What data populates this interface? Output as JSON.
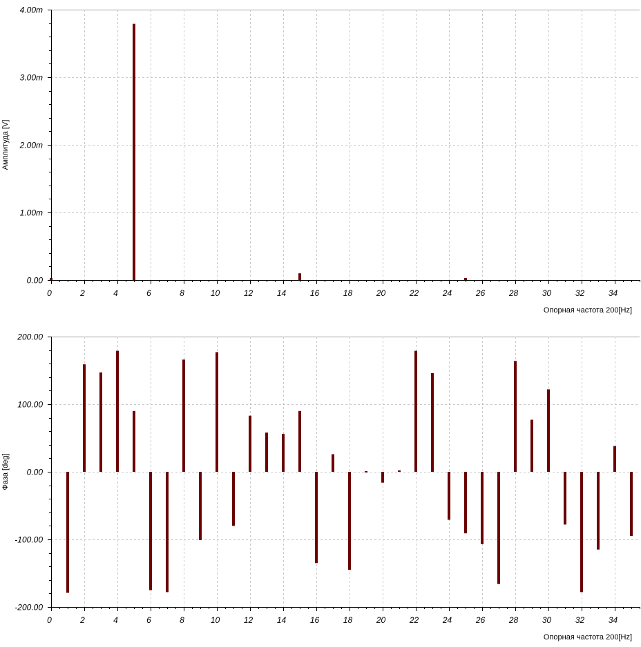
{
  "chart_data": [
    {
      "type": "bar",
      "ylabel": "Амплитуда [V]",
      "xlabel": "Опорная частота 200[Hz]",
      "xlim": [
        0,
        35.5
      ],
      "ylim": [
        0,
        4.0
      ],
      "xticks": [
        0,
        2,
        4,
        6,
        8,
        10,
        12,
        14,
        16,
        18,
        20,
        22,
        24,
        26,
        28,
        30,
        32,
        34
      ],
      "xtick_labels": [
        "0",
        "2",
        "4",
        "6",
        "8",
        "10",
        "12",
        "14",
        "16",
        "18",
        "20",
        "22",
        "24",
        "26",
        "28",
        "30",
        "32",
        "34"
      ],
      "yticks": [
        0,
        1.0,
        2.0,
        3.0,
        4.0
      ],
      "ytick_labels": [
        "0.00",
        "1.00m",
        "2.00m",
        "3.00m",
        "4.00m"
      ],
      "color": "#6b0000",
      "x": [
        0,
        5,
        15,
        25
      ],
      "values": [
        0.03,
        3.79,
        0.1,
        0.03
      ]
    },
    {
      "type": "bar",
      "ylabel": "Фаза [deg]",
      "xlabel": "Опорная частота 200[Hz]",
      "xlim": [
        0,
        35.5
      ],
      "ylim": [
        -200,
        200
      ],
      "xticks": [
        0,
        2,
        4,
        6,
        8,
        10,
        12,
        14,
        16,
        18,
        20,
        22,
        24,
        26,
        28,
        30,
        32,
        34
      ],
      "xtick_labels": [
        "0",
        "2",
        "4",
        "6",
        "8",
        "10",
        "12",
        "14",
        "16",
        "18",
        "20",
        "22",
        "24",
        "26",
        "28",
        "30",
        "32",
        "34"
      ],
      "yticks": [
        -200,
        -100,
        0,
        100,
        200
      ],
      "ytick_labels": [
        "-200.00",
        "-100.00",
        "0.00",
        "100.00",
        "200.00"
      ],
      "color": "#6b0000",
      "x": [
        1,
        2,
        3,
        4,
        5,
        6,
        7,
        8,
        9,
        10,
        11,
        12,
        13,
        14,
        15,
        16,
        17,
        18,
        19,
        20,
        21,
        22,
        23,
        24,
        25,
        26,
        27,
        28,
        29,
        30,
        31,
        32,
        33,
        34,
        35
      ],
      "values": [
        -179,
        159,
        147,
        179,
        90,
        -175,
        -178,
        166,
        -101,
        177,
        -80,
        83,
        58,
        56,
        90,
        -135,
        26,
        -145,
        -2,
        -16,
        1,
        179,
        146,
        -71,
        -91,
        -107,
        -166,
        164,
        77,
        122,
        -78,
        -178,
        -115,
        38,
        -95
      ]
    }
  ]
}
